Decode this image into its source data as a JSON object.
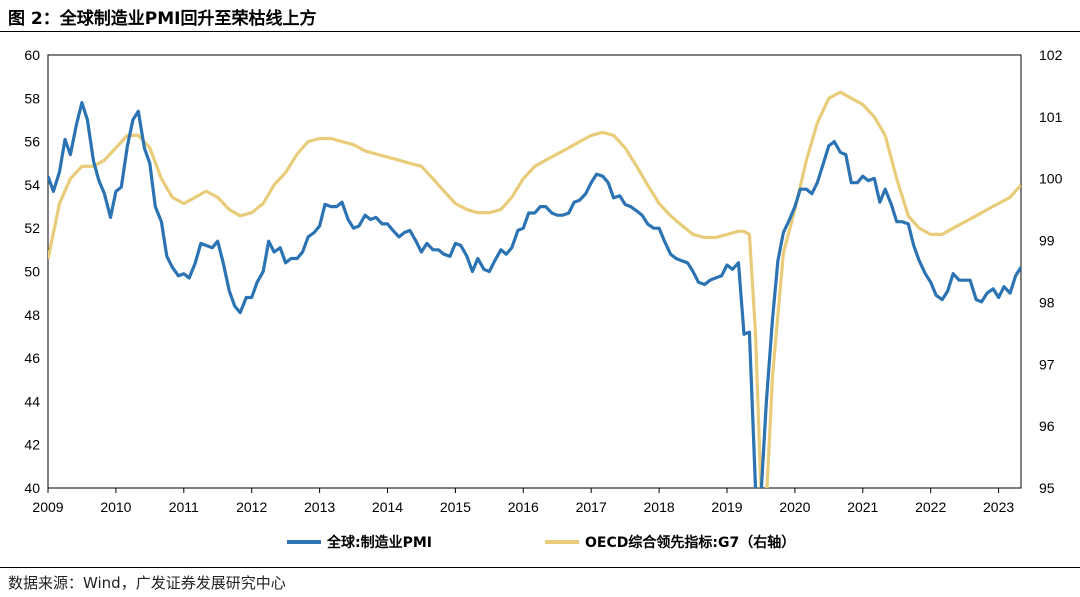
{
  "figure_title": "图 2：全球制造业PMI回升至荣枯线上方",
  "source": "数据来源：Wind，广发证券发展研究中心",
  "chart_data": {
    "type": "line",
    "title": "",
    "x_ticks": [
      "2009",
      "2010",
      "2011",
      "2012",
      "2013",
      "2014",
      "2015",
      "2016",
      "2017",
      "2018",
      "2019",
      "2020",
      "2021",
      "2022",
      "2023"
    ],
    "xlim": [
      2009.0,
      2023.33
    ],
    "y_left": {
      "lim": [
        40,
        60
      ],
      "ticks": [
        40,
        42,
        44,
        46,
        48,
        50,
        52,
        54,
        56,
        58,
        60
      ]
    },
    "y_right": {
      "lim": [
        95,
        102
      ],
      "ticks": [
        95,
        96,
        97,
        98,
        99,
        100,
        101,
        102
      ]
    },
    "legend_position": "bottom",
    "series": [
      {
        "name": "全球:制造业PMI",
        "axis": "left",
        "color": "#2b73b2",
        "x": [
          2009.0,
          2009.08,
          2009.17,
          2009.25,
          2009.33,
          2009.42,
          2009.5,
          2009.58,
          2009.67,
          2009.75,
          2009.83,
          2009.92,
          2010.0,
          2010.08,
          2010.17,
          2010.25,
          2010.33,
          2010.42,
          2010.5,
          2010.58,
          2010.67,
          2010.75,
          2010.83,
          2010.92,
          2011.0,
          2011.08,
          2011.17,
          2011.25,
          2011.33,
          2011.42,
          2011.5,
          2011.58,
          2011.67,
          2011.75,
          2011.83,
          2011.92,
          2012.0,
          2012.08,
          2012.17,
          2012.25,
          2012.33,
          2012.42,
          2012.5,
          2012.58,
          2012.67,
          2012.75,
          2012.83,
          2012.92,
          2013.0,
          2013.08,
          2013.17,
          2013.25,
          2013.33,
          2013.42,
          2013.5,
          2013.58,
          2013.67,
          2013.75,
          2013.83,
          2013.92,
          2014.0,
          2014.08,
          2014.17,
          2014.25,
          2014.33,
          2014.42,
          2014.5,
          2014.58,
          2014.67,
          2014.75,
          2014.83,
          2014.92,
          2015.0,
          2015.08,
          2015.17,
          2015.25,
          2015.33,
          2015.42,
          2015.5,
          2015.58,
          2015.67,
          2015.75,
          2015.83,
          2015.92,
          2016.0,
          2016.08,
          2016.17,
          2016.25,
          2016.33,
          2016.42,
          2016.5,
          2016.58,
          2016.67,
          2016.75,
          2016.83,
          2016.92,
          2017.0,
          2017.08,
          2017.17,
          2017.25,
          2017.33,
          2017.42,
          2017.5,
          2017.58,
          2017.67,
          2017.75,
          2017.83,
          2017.92,
          2018.0,
          2018.08,
          2018.17,
          2018.25,
          2018.33,
          2018.42,
          2018.5,
          2018.58,
          2018.67,
          2018.75,
          2018.83,
          2018.92,
          2019.0,
          2019.08,
          2019.17,
          2019.25,
          2019.33,
          2019.42,
          2019.5,
          2019.58,
          2019.67,
          2019.75,
          2019.83,
          2019.92,
          2020.0,
          2020.08,
          2020.17,
          2020.25,
          2020.33,
          2020.42,
          2020.5,
          2020.58,
          2020.67,
          2020.75,
          2020.83,
          2020.92,
          2021.0,
          2021.08,
          2021.17,
          2021.25,
          2021.33,
          2021.42,
          2021.5,
          2021.58,
          2021.67,
          2021.75,
          2021.83,
          2021.92,
          2022.0,
          2022.08,
          2022.17,
          2022.25,
          2022.33,
          2022.42,
          2022.5,
          2022.58,
          2022.67,
          2022.75,
          2022.83,
          2022.92,
          2023.0,
          2023.08,
          2023.17,
          2023.25,
          2023.33
        ],
        "y": [
          54.4,
          53.7,
          54.6,
          56.1,
          55.4,
          56.8,
          57.8,
          57.0,
          55.1,
          54.2,
          53.6,
          52.5,
          53.7,
          53.9,
          55.8,
          57.0,
          57.4,
          55.7,
          55.0,
          53.0,
          52.3,
          50.7,
          50.2,
          49.8,
          49.9,
          49.7,
          50.4,
          51.3,
          51.2,
          51.1,
          51.4,
          50.4,
          49.1,
          48.4,
          48.1,
          48.8,
          48.8,
          49.5,
          50.0,
          51.4,
          50.9,
          51.1,
          50.4,
          50.6,
          50.6,
          50.9,
          51.6,
          51.8,
          52.1,
          53.1,
          53.0,
          53.0,
          53.2,
          52.4,
          52.0,
          52.1,
          52.6,
          52.4,
          52.5,
          52.2,
          52.2,
          51.9,
          51.6,
          51.8,
          51.9,
          51.4,
          50.9,
          51.3,
          51.0,
          51.0,
          50.8,
          50.7,
          51.3,
          51.2,
          50.7,
          50.0,
          50.6,
          50.1,
          50.0,
          50.5,
          51.0,
          50.8,
          51.1,
          51.9,
          52.0,
          52.7,
          52.7,
          53.0,
          53.0,
          52.7,
          52.6,
          52.6,
          52.7,
          53.2,
          53.3,
          53.6,
          54.1,
          54.5,
          54.4,
          54.1,
          53.4,
          53.5,
          53.1,
          53.0,
          52.8,
          52.6,
          52.2,
          52.0,
          52.0,
          51.4,
          50.8,
          50.6,
          50.5,
          50.4,
          50.0,
          49.5,
          49.4,
          49.6,
          49.7,
          49.8,
          50.3,
          50.1,
          50.4,
          47.1,
          47.2,
          40.0,
          39.6,
          44.0,
          47.8,
          50.5,
          51.8,
          52.4,
          53.0,
          53.8,
          53.8,
          53.6,
          54.1,
          55.0,
          55.8,
          56.0,
          55.5,
          55.4,
          54.1,
          54.1,
          54.4,
          54.2,
          54.3,
          53.2,
          53.8,
          53.1,
          52.3,
          52.3,
          52.2,
          51.2,
          50.5,
          49.9,
          49.5,
          48.9,
          48.7,
          49.1,
          49.9,
          49.6,
          49.6,
          49.6,
          48.7,
          48.6,
          49.0,
          49.2,
          48.8,
          49.3,
          49.0,
          49.8,
          50.2
        ]
      },
      {
        "name": "OECD综合领先指标:G7（右轴）",
        "axis": "right",
        "color": "#e8cc7a",
        "x": [
          2009.0,
          2009.17,
          2009.33,
          2009.5,
          2009.67,
          2009.83,
          2010.0,
          2010.17,
          2010.33,
          2010.5,
          2010.67,
          2010.83,
          2011.0,
          2011.17,
          2011.33,
          2011.5,
          2011.67,
          2011.83,
          2012.0,
          2012.17,
          2012.33,
          2012.5,
          2012.67,
          2012.83,
          2013.0,
          2013.17,
          2013.33,
          2013.5,
          2013.67,
          2013.83,
          2014.0,
          2014.17,
          2014.33,
          2014.5,
          2014.67,
          2014.83,
          2015.0,
          2015.17,
          2015.33,
          2015.5,
          2015.67,
          2015.83,
          2016.0,
          2016.17,
          2016.33,
          2016.5,
          2016.67,
          2016.83,
          2017.0,
          2017.17,
          2017.33,
          2017.5,
          2017.67,
          2017.83,
          2018.0,
          2018.17,
          2018.33,
          2018.5,
          2018.67,
          2018.83,
          2019.0,
          2019.17,
          2019.25,
          2019.33,
          2019.42,
          2019.5,
          2019.58,
          2019.67,
          2019.83,
          2020.0,
          2020.17,
          2020.33,
          2020.5,
          2020.67,
          2020.83,
          2021.0,
          2021.17,
          2021.33,
          2021.5,
          2021.67,
          2021.83,
          2022.0,
          2022.17,
          2022.33,
          2022.5,
          2022.67,
          2022.83,
          2023.0,
          2023.17,
          2023.25,
          2023.33
        ],
        "y": [
          98.7,
          99.6,
          100.0,
          100.2,
          100.2,
          100.3,
          100.5,
          100.7,
          100.7,
          100.5,
          100.0,
          99.7,
          99.6,
          99.7,
          99.8,
          99.7,
          99.5,
          99.4,
          99.45,
          99.6,
          99.9,
          100.1,
          100.4,
          100.6,
          100.65,
          100.65,
          100.6,
          100.55,
          100.45,
          100.4,
          100.35,
          100.3,
          100.25,
          100.2,
          100.0,
          99.8,
          99.6,
          99.5,
          99.45,
          99.45,
          99.5,
          99.7,
          100.0,
          100.2,
          100.3,
          100.4,
          100.5,
          100.6,
          100.7,
          100.75,
          100.7,
          100.5,
          100.2,
          99.9,
          99.6,
          99.4,
          99.25,
          99.1,
          99.05,
          99.05,
          99.1,
          99.15,
          99.15,
          99.1,
          97.5,
          95.0,
          94.8,
          96.8,
          98.8,
          99.5,
          100.3,
          100.9,
          101.3,
          101.4,
          101.3,
          101.2,
          101.0,
          100.7,
          100.0,
          99.4,
          99.2,
          99.1,
          99.1,
          99.2,
          99.3,
          99.4,
          99.5,
          99.6,
          99.7,
          99.8,
          99.9
        ]
      }
    ]
  }
}
